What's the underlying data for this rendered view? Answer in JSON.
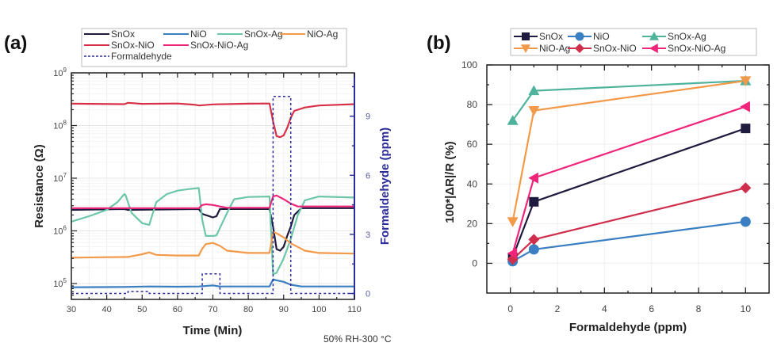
{
  "chart_data": [
    {
      "panel": "(a)",
      "type": "line",
      "xlabel": "Time (Min)",
      "ylabel": "Resistance (Ω)",
      "y2label": "Formaldehyde (ppm)",
      "xlim": [
        30,
        110
      ],
      "ylim": [
        50000,
        1000000000
      ],
      "yscale": "log",
      "y2lim": [
        -0.3,
        11.2
      ],
      "xticks": [
        "30",
        "40",
        "50",
        "60",
        "70",
        "80",
        "90",
        "100",
        "110"
      ],
      "yticks": [
        "10^5",
        "10^6",
        "10^7",
        "10^8",
        "10^9"
      ],
      "y2ticks": [
        "0",
        "3",
        "6",
        "9"
      ],
      "grid": true,
      "legend_position": "top",
      "annotation": "50% RH-300 °C",
      "colors": {
        "SnOx": "#1e1b3f",
        "NiO": "#3a7fc1",
        "SnOx-Ag": "#6cc6a8",
        "NiO-Ag": "#f39a4a",
        "SnOx-NiO": "#d9304a",
        "SnOx-NiO-Ag": "#f0257a",
        "Formaldehyde": "#2b2b9a"
      },
      "series": [
        {
          "name": "SnOx",
          "x": [
            30,
            45,
            46,
            66,
            67,
            70,
            71,
            72,
            86,
            87,
            88,
            89,
            90,
            91,
            92,
            93,
            95,
            110
          ],
          "y": [
            2500000,
            2600000,
            2500000,
            2600000,
            2100000,
            1800000,
            1900000,
            2600000,
            2600000,
            1200000,
            450000,
            420000,
            500000,
            800000,
            1200000,
            2000000,
            2700000,
            2700000
          ]
        },
        {
          "name": "NiO",
          "x": [
            30,
            45,
            52,
            60,
            66,
            70,
            72,
            86,
            87,
            88,
            90,
            92,
            95,
            110
          ],
          "y": [
            85000,
            86000,
            88000,
            87000,
            88000,
            92000,
            88000,
            88000,
            120000,
            115000,
            108000,
            95000,
            88000,
            88000
          ]
        },
        {
          "name": "SnOx-Ag",
          "x": [
            30,
            35,
            40,
            43,
            45,
            45.3,
            47,
            50,
            52,
            54,
            57,
            60,
            63,
            66,
            67,
            68,
            70,
            71,
            74,
            76,
            80,
            86,
            87,
            88,
            90,
            92,
            94,
            96,
            100,
            110
          ],
          "y": [
            1500000,
            1900000,
            2500000,
            3500000,
            5000000,
            4800000,
            2200000,
            1400000,
            1300000,
            3500000,
            5000000,
            5800000,
            6200000,
            6500000,
            1600000,
            800000,
            800000,
            820000,
            2200000,
            4000000,
            4400000,
            4500000,
            150000,
            160000,
            300000,
            700000,
            2000000,
            3800000,
            4500000,
            4300000
          ]
        },
        {
          "name": "NiO-Ag",
          "x": [
            30,
            46,
            50,
            52,
            54,
            60,
            66,
            67,
            68,
            70,
            72,
            74,
            80,
            86,
            87,
            88,
            90,
            92,
            96,
            100,
            110
          ],
          "y": [
            310000,
            320000,
            360000,
            390000,
            350000,
            340000,
            340000,
            460000,
            560000,
            590000,
            520000,
            420000,
            380000,
            380000,
            950000,
            900000,
            750000,
            580000,
            420000,
            380000,
            370000
          ]
        },
        {
          "name": "SnOx-NiO",
          "x": [
            30,
            45,
            46,
            50,
            60,
            64,
            65,
            66,
            70,
            80,
            86,
            87,
            88,
            89,
            90,
            91,
            92,
            93,
            96,
            100,
            110
          ],
          "y": [
            260000000,
            255000000,
            270000000,
            258000000,
            262000000,
            250000000,
            248000000,
            240000000,
            252000000,
            260000000,
            262000000,
            120000000,
            63000000,
            60000000,
            65000000,
            90000000,
            140000000,
            190000000,
            220000000,
            240000000,
            255000000
          ]
        },
        {
          "name": "SnOx-NiO-Ag",
          "x": [
            30,
            66,
            67,
            68,
            70,
            72,
            74,
            86,
            87,
            88,
            90,
            92,
            94,
            110
          ],
          "y": [
            2700000,
            2700000,
            3100000,
            3200000,
            3100000,
            2900000,
            2750000,
            2750000,
            4500000,
            4700000,
            4000000,
            3300000,
            2900000,
            2900000
          ]
        }
      ],
      "series_y2": [
        {
          "name": "Formaldehyde",
          "x": [
            30,
            46,
            46,
            52,
            52,
            67,
            67,
            72,
            72,
            87,
            87,
            92,
            92,
            110
          ],
          "y": [
            0,
            0,
            0.1,
            0.1,
            0,
            0,
            1,
            1,
            0,
            0,
            10,
            10,
            0,
            0
          ]
        }
      ],
      "legend": [
        "SnOx",
        "NiO",
        "SnOx-Ag",
        "NiO-Ag",
        "SnOx-NiO",
        "SnOx-NiO-Ag",
        "Formaldehyde"
      ]
    },
    {
      "panel": "(b)",
      "type": "line",
      "xlabel": "Formaldehyde (ppm)",
      "ylabel": "100*|ΔR|/R (%)",
      "xlim": [
        -1,
        11
      ],
      "ylim": [
        -15,
        100
      ],
      "xticks": [
        "0",
        "2",
        "4",
        "6",
        "8",
        "10"
      ],
      "yticks": [
        "0",
        "20",
        "40",
        "60",
        "80",
        "100"
      ],
      "grid": true,
      "legend_position": "top",
      "x": [
        0.1,
        1,
        10
      ],
      "series": [
        {
          "name": "SnOx",
          "marker": "square",
          "color": "#1e1b3f",
          "values": [
            3,
            31,
            68
          ]
        },
        {
          "name": "NiO",
          "marker": "circle",
          "color": "#3a7fc1",
          "values": [
            1,
            7,
            21
          ]
        },
        {
          "name": "SnOx-Ag",
          "marker": "triangle-up",
          "color": "#4fb39c",
          "values": [
            72,
            87,
            92
          ]
        },
        {
          "name": "NiO-Ag",
          "marker": "triangle-down",
          "color": "#f39a4a",
          "values": [
            21,
            77,
            92
          ]
        },
        {
          "name": "SnOx-NiO",
          "marker": "diamond",
          "color": "#cf2f4c",
          "values": [
            2,
            12,
            38
          ]
        },
        {
          "name": "SnOx-NiO-Ag",
          "marker": "triangle-left",
          "color": "#f0257a",
          "values": [
            5,
            43,
            79
          ]
        }
      ]
    }
  ]
}
